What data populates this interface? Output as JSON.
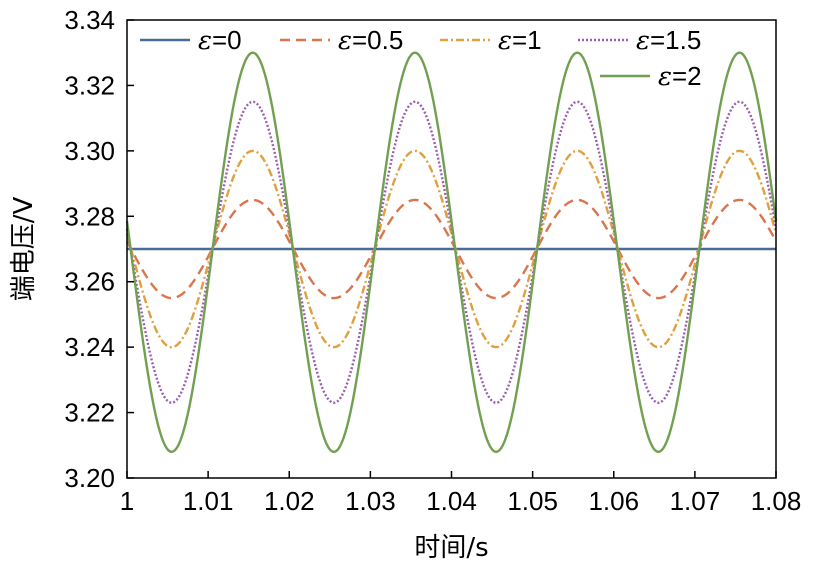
{
  "chart_data": {
    "type": "line",
    "xlabel": "时间/s",
    "ylabel": "端电压/V",
    "xlim": [
      1,
      1.08
    ],
    "ylim": [
      3.2,
      3.34
    ],
    "xticks": [
      "1",
      "1.01",
      "1.02",
      "1.03",
      "1.04",
      "1.05",
      "1.06",
      "1.07",
      "1.08"
    ],
    "yticks": [
      "3.20",
      "3.22",
      "3.24",
      "3.26",
      "3.28",
      "3.30",
      "3.32",
      "3.34"
    ],
    "legend_position": "top",
    "series": [
      {
        "name": "ε=0",
        "symbol": "ε",
        "value_text": "=0",
        "color": "#4a6b96",
        "dash": "solid",
        "baseline": 3.27,
        "amplitude": 0.0,
        "period": 0.02,
        "phase_time": 1.0055
      },
      {
        "name": "ε=0.5",
        "symbol": "ε",
        "value_text": "=0.5",
        "color": "#d9754f",
        "dash": "dashed",
        "baseline": 3.27,
        "amplitude": 0.015,
        "period": 0.02,
        "phase_time": 1.0055
      },
      {
        "name": "ε=1",
        "symbol": "ε",
        "value_text": "=1",
        "color": "#e0a040",
        "dash": "dashdot",
        "baseline": 3.27,
        "amplitude": 0.03,
        "period": 0.02,
        "phase_time": 1.0055
      },
      {
        "name": "ε=1.5",
        "symbol": "ε",
        "value_text": "=1.5",
        "color": "#9a5fb0",
        "dash": "dotted",
        "baseline": 3.269,
        "amplitude": 0.046,
        "period": 0.02,
        "phase_time": 1.0055
      },
      {
        "name": "ε=2",
        "symbol": "ε",
        "value_text": "=2",
        "color": "#70a050",
        "dash": "solid",
        "baseline": 3.269,
        "amplitude": 0.061,
        "period": 0.02,
        "phase_time": 1.0055
      }
    ]
  }
}
